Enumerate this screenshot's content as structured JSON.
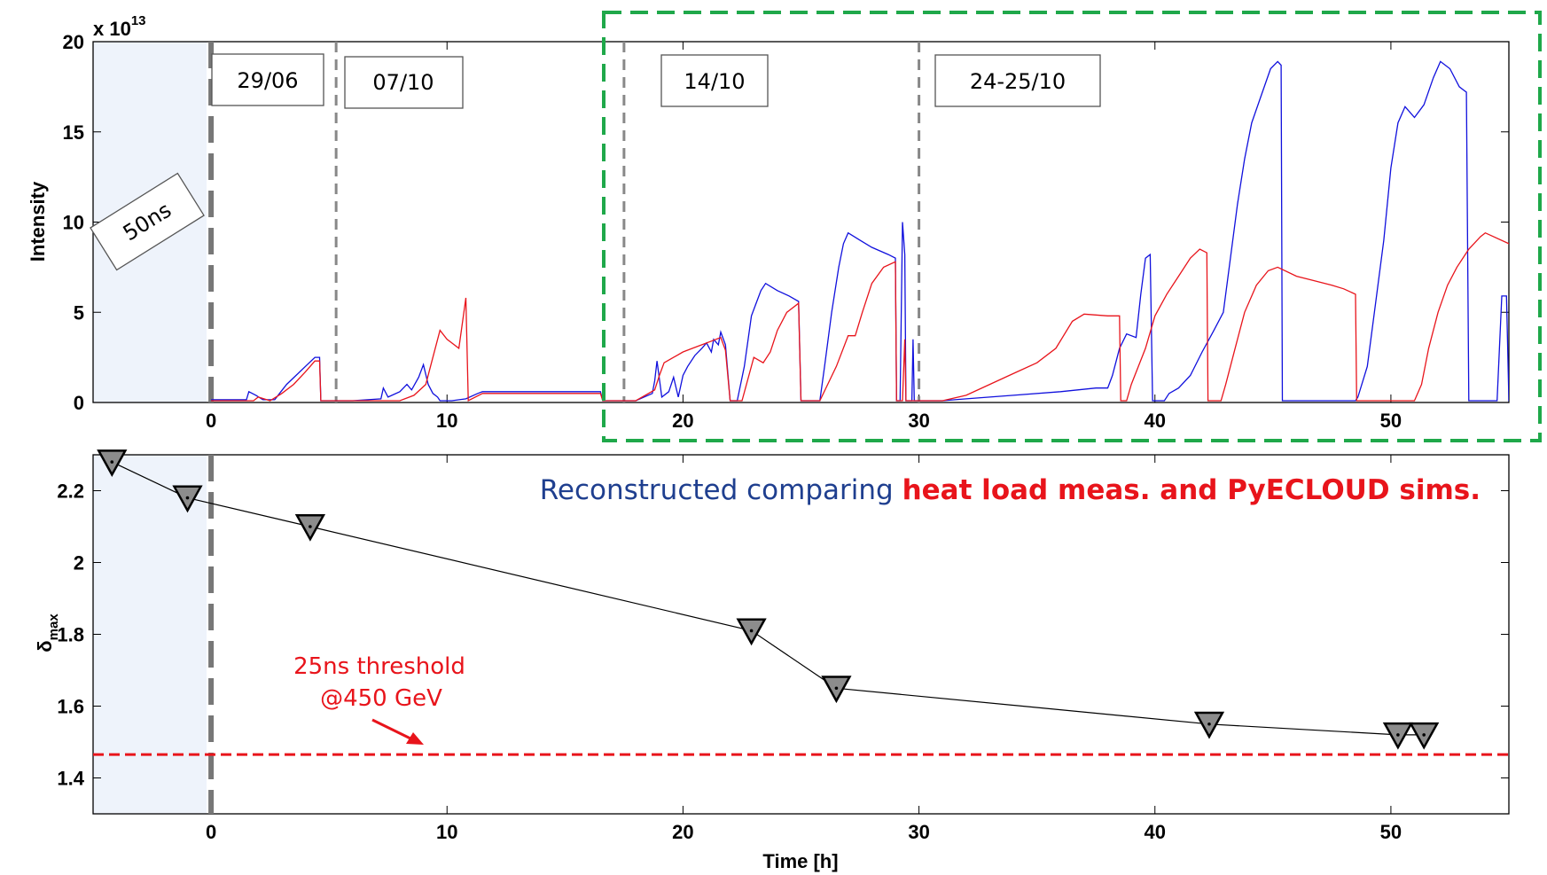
{
  "chart_data": [
    {
      "type": "line",
      "ylabel": "Intensity",
      "y_exponent_label": "x 10",
      "y_exponent": "13",
      "xlim": [
        -5,
        55
      ],
      "ylim": [
        0,
        20
      ],
      "xticks": [
        0,
        10,
        20,
        30,
        40,
        50
      ],
      "yticks": [
        0,
        5,
        10,
        15,
        20
      ],
      "grid": false,
      "shaded_region": {
        "x": [
          -5,
          0
        ],
        "label": "50ns"
      },
      "dividers_x": [
        0,
        5.3,
        17.5,
        30
      ],
      "fill_labels": [
        "29/06",
        "07/10",
        "14/10",
        "24-25/10"
      ],
      "highlight_box": {
        "x": [
          16.5,
          56.5
        ],
        "style": "green dashed"
      },
      "series": [
        {
          "color": "#1010dd",
          "values": [
            [
              0,
              0.15
            ],
            [
              1.5,
              0.15
            ],
            [
              1.6,
              0.6
            ],
            [
              1.9,
              0.4
            ],
            [
              2.2,
              0.15
            ],
            [
              2.7,
              0.15
            ],
            [
              2.9,
              0.5
            ],
            [
              3.2,
              1.0
            ],
            [
              3.6,
              1.5
            ],
            [
              4.0,
              2.0
            ],
            [
              4.4,
              2.5
            ],
            [
              4.6,
              2.5
            ],
            [
              4.65,
              0.1
            ],
            [
              5.2,
              0.1
            ],
            [
              6.0,
              0.1
            ],
            [
              7.2,
              0.2
            ],
            [
              7.3,
              0.8
            ],
            [
              7.5,
              0.3
            ],
            [
              8.0,
              0.6
            ],
            [
              8.3,
              1.0
            ],
            [
              8.5,
              0.7
            ],
            [
              8.8,
              1.4
            ],
            [
              9.0,
              2.1
            ],
            [
              9.2,
              1.0
            ],
            [
              9.4,
              0.5
            ],
            [
              9.6,
              0.3
            ],
            [
              9.7,
              0.1
            ],
            [
              10.0,
              0.1
            ],
            [
              10.2,
              0.1
            ],
            [
              10.8,
              0.2
            ],
            [
              11.3,
              0.5
            ],
            [
              11.5,
              0.6
            ],
            [
              16.5,
              0.6
            ],
            [
              16.6,
              0.1
            ],
            [
              18.0,
              0.1
            ],
            [
              18.7,
              0.5
            ],
            [
              18.8,
              1.2
            ],
            [
              18.9,
              2.3
            ],
            [
              19.1,
              0.3
            ],
            [
              19.4,
              0.6
            ],
            [
              19.6,
              1.4
            ],
            [
              19.8,
              0.3
            ],
            [
              20.0,
              1.5
            ],
            [
              20.2,
              2.0
            ],
            [
              20.5,
              2.6
            ],
            [
              20.8,
              3.0
            ],
            [
              21.0,
              3.3
            ],
            [
              21.2,
              2.8
            ],
            [
              21.3,
              3.5
            ],
            [
              21.5,
              3.2
            ],
            [
              21.6,
              3.9
            ],
            [
              21.8,
              3.2
            ],
            [
              22.0,
              0.1
            ],
            [
              22.3,
              0.1
            ],
            [
              22.6,
              2.0
            ],
            [
              22.9,
              4.8
            ],
            [
              23.1,
              5.5
            ],
            [
              23.3,
              6.2
            ],
            [
              23.5,
              6.6
            ],
            [
              24.0,
              6.2
            ],
            [
              24.5,
              5.9
            ],
            [
              24.9,
              5.6
            ],
            [
              25.0,
              0.1
            ],
            [
              25.8,
              0.1
            ],
            [
              26.0,
              2.0
            ],
            [
              26.3,
              5.0
            ],
            [
              26.6,
              7.5
            ],
            [
              26.8,
              8.8
            ],
            [
              27.0,
              9.4
            ],
            [
              27.5,
              9.0
            ],
            [
              28.0,
              8.6
            ],
            [
              28.7,
              8.2
            ],
            [
              29.0,
              8.0
            ],
            [
              29.05,
              0.1
            ],
            [
              29.2,
              0.1
            ],
            [
              29.3,
              10.0
            ],
            [
              29.4,
              8.2
            ],
            [
              29.45,
              0.1
            ],
            [
              29.7,
              0.1
            ],
            [
              29.75,
              3.5
            ],
            [
              29.8,
              0.1
            ],
            [
              30.0,
              0.1
            ],
            [
              31.0,
              0.1
            ],
            [
              32.0,
              0.2
            ],
            [
              34.0,
              0.4
            ],
            [
              36.0,
              0.6
            ],
            [
              37.5,
              0.8
            ],
            [
              38.0,
              0.8
            ],
            [
              38.2,
              1.5
            ],
            [
              38.5,
              3.0
            ],
            [
              38.8,
              3.8
            ],
            [
              39.2,
              3.6
            ],
            [
              39.4,
              6.0
            ],
            [
              39.6,
              8.0
            ],
            [
              39.8,
              8.2
            ],
            [
              39.9,
              0.1
            ],
            [
              40.4,
              0.1
            ],
            [
              40.6,
              0.5
            ],
            [
              41.0,
              0.8
            ],
            [
              41.5,
              1.5
            ],
            [
              42.0,
              2.8
            ],
            [
              42.5,
              4.0
            ],
            [
              42.9,
              5.0
            ],
            [
              43.2,
              8.0
            ],
            [
              43.5,
              11.0
            ],
            [
              43.8,
              13.5
            ],
            [
              44.1,
              15.5
            ],
            [
              44.5,
              17.0
            ],
            [
              44.9,
              18.5
            ],
            [
              45.2,
              18.9
            ],
            [
              45.35,
              18.7
            ],
            [
              45.4,
              0.1
            ],
            [
              48.5,
              0.1
            ],
            [
              48.6,
              0.3
            ],
            [
              49.0,
              2.0
            ],
            [
              49.3,
              5.0
            ],
            [
              49.7,
              9.0
            ],
            [
              50.0,
              13.0
            ],
            [
              50.3,
              15.5
            ],
            [
              50.6,
              16.4
            ],
            [
              51.0,
              15.8
            ],
            [
              51.4,
              16.5
            ],
            [
              51.8,
              18.0
            ],
            [
              52.1,
              18.9
            ],
            [
              52.5,
              18.5
            ],
            [
              52.9,
              17.5
            ],
            [
              53.2,
              17.2
            ],
            [
              53.3,
              0.1
            ],
            [
              54.5,
              0.1
            ],
            [
              54.7,
              5.9
            ],
            [
              54.9,
              5.9
            ],
            [
              55.0,
              0.1
            ],
            [
              57.0,
              0.1
            ]
          ]
        },
        {
          "color": "#e8141b",
          "values": [
            [
              0,
              0.1
            ],
            [
              1.8,
              0.1
            ],
            [
              2.0,
              0.3
            ],
            [
              2.5,
              0.1
            ],
            [
              3.0,
              0.5
            ],
            [
              3.5,
              1.0
            ],
            [
              4.0,
              1.7
            ],
            [
              4.4,
              2.3
            ],
            [
              4.6,
              2.3
            ],
            [
              4.65,
              0.1
            ],
            [
              5.2,
              0.1
            ],
            [
              6.0,
              0.1
            ],
            [
              7.0,
              0.1
            ],
            [
              8.0,
              0.1
            ],
            [
              8.6,
              0.4
            ],
            [
              9.1,
              1.0
            ],
            [
              9.3,
              2.0
            ],
            [
              9.7,
              4.0
            ],
            [
              10.0,
              3.5
            ],
            [
              10.5,
              3.0
            ],
            [
              10.8,
              5.8
            ],
            [
              10.9,
              0.1
            ],
            [
              11.5,
              0.5
            ],
            [
              16.5,
              0.5
            ],
            [
              16.6,
              0.1
            ],
            [
              18.0,
              0.1
            ],
            [
              18.8,
              0.7
            ],
            [
              19.0,
              1.5
            ],
            [
              19.2,
              2.2
            ],
            [
              19.6,
              2.5
            ],
            [
              20.0,
              2.8
            ],
            [
              20.4,
              3.0
            ],
            [
              20.8,
              3.2
            ],
            [
              21.2,
              3.4
            ],
            [
              21.6,
              3.6
            ],
            [
              21.8,
              2.9
            ],
            [
              22.0,
              0.1
            ],
            [
              22.5,
              0.1
            ],
            [
              23.0,
              2.5
            ],
            [
              23.4,
              2.2
            ],
            [
              23.7,
              2.8
            ],
            [
              24.0,
              4.0
            ],
            [
              24.4,
              5.0
            ],
            [
              24.9,
              5.5
            ],
            [
              25.0,
              0.1
            ],
            [
              25.8,
              0.1
            ],
            [
              26.5,
              2.0
            ],
            [
              27.0,
              3.7
            ],
            [
              27.3,
              3.7
            ],
            [
              27.6,
              5.0
            ],
            [
              28.0,
              6.6
            ],
            [
              28.5,
              7.5
            ],
            [
              29.0,
              7.8
            ],
            [
              29.05,
              0.1
            ],
            [
              29.3,
              0.1
            ],
            [
              29.4,
              3.5
            ],
            [
              29.45,
              0.1
            ],
            [
              30.0,
              0.1
            ],
            [
              31.0,
              0.1
            ],
            [
              32.0,
              0.4
            ],
            [
              33.0,
              1.0
            ],
            [
              34.0,
              1.6
            ],
            [
              35.0,
              2.2
            ],
            [
              35.8,
              3.0
            ],
            [
              36.5,
              4.5
            ],
            [
              37.0,
              4.9
            ],
            [
              38.0,
              4.8
            ],
            [
              38.5,
              4.8
            ],
            [
              38.55,
              0.1
            ],
            [
              38.8,
              0.1
            ],
            [
              39.0,
              1.0
            ],
            [
              39.3,
              2.0
            ],
            [
              39.6,
              3.0
            ],
            [
              40.0,
              4.8
            ],
            [
              40.5,
              6.0
            ],
            [
              41.0,
              7.0
            ],
            [
              41.5,
              8.0
            ],
            [
              41.9,
              8.5
            ],
            [
              42.2,
              8.3
            ],
            [
              42.25,
              0.1
            ],
            [
              42.8,
              0.1
            ],
            [
              43.0,
              1.0
            ],
            [
              43.4,
              3.0
            ],
            [
              43.8,
              5.0
            ],
            [
              44.3,
              6.5
            ],
            [
              44.8,
              7.3
            ],
            [
              45.2,
              7.5
            ],
            [
              46.0,
              7.0
            ],
            [
              46.6,
              6.8
            ],
            [
              47.5,
              6.5
            ],
            [
              48.0,
              6.3
            ],
            [
              48.5,
              6.0
            ],
            [
              48.55,
              0.1
            ],
            [
              51.0,
              0.1
            ],
            [
              51.3,
              1.0
            ],
            [
              51.6,
              3.0
            ],
            [
              52.0,
              5.0
            ],
            [
              52.4,
              6.5
            ],
            [
              52.8,
              7.5
            ],
            [
              53.3,
              8.5
            ],
            [
              53.8,
              9.2
            ],
            [
              54.0,
              9.4
            ],
            [
              55.0,
              8.8
            ],
            [
              56.0,
              8.3
            ],
            [
              57.0,
              7.8
            ],
            [
              58.0,
              7.5
            ],
            [
              58.05,
              0.1
            ],
            [
              60.0,
              0.1
            ]
          ]
        }
      ]
    },
    {
      "type": "line",
      "xlabel": "Time [h]",
      "ylabel": "δ",
      "ylabel_sub": "max",
      "xlim": [
        -5,
        55
      ],
      "ylim": [
        1.3,
        2.3
      ],
      "xticks": [
        0,
        10,
        20,
        30,
        40,
        50
      ],
      "yticks": [
        1.4,
        1.6,
        1.8,
        2,
        2.2
      ],
      "grid": false,
      "shaded_region": {
        "x": [
          -5,
          0
        ]
      },
      "dividers_x": [
        0
      ],
      "series": [
        {
          "marker": "downward-triangle",
          "color": "#000000",
          "x": [
            -4.2,
            -1,
            4.2,
            22.9,
            26.5,
            42.3,
            50.3,
            51.4
          ],
          "y": [
            2.28,
            2.18,
            2.1,
            1.81,
            1.65,
            1.55,
            1.52,
            1.52
          ]
        }
      ],
      "threshold": {
        "y": 1.465,
        "color": "#e8141b"
      },
      "annotation_blue": "Reconstructed comparing ",
      "annotation_red": "heat load meas. and PyECLOUD sims.",
      "threshold_label_1": "25ns threshold",
      "threshold_label_2": "@450 GeV"
    }
  ]
}
